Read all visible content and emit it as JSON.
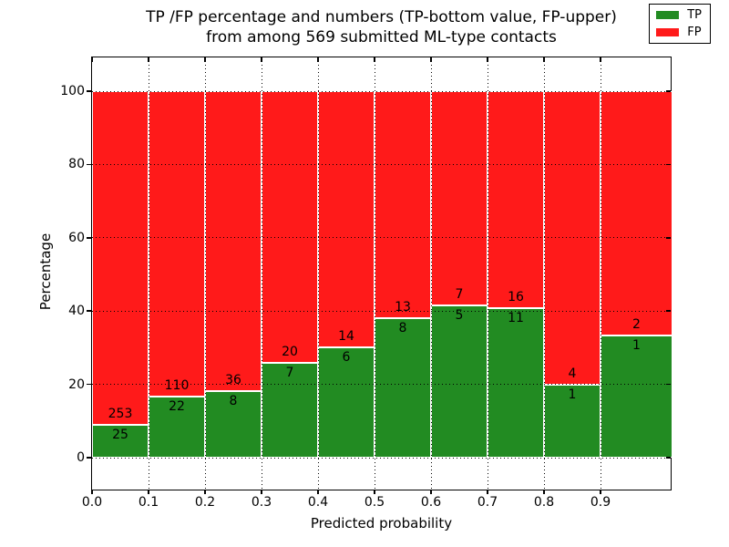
{
  "title": {
    "line1": "TP /FP percentage and numbers (TP-bottom value, FP-upper)",
    "line2": "from among 569 submitted ML-type contacts"
  },
  "chart_data": {
    "type": "bar",
    "subtype": "stacked_percentage",
    "title": "TP /FP percentage and numbers (TP-bottom value, FP-upper) from among 569 submitted ML-type contacts",
    "xlabel": "Predicted probability",
    "ylabel": "Percentage",
    "total_contacts": 569,
    "categories": [
      "0.0",
      "0.1",
      "0.2",
      "0.3",
      "0.4",
      "0.5",
      "0.6",
      "0.7",
      "0.8",
      "0.9"
    ],
    "series": [
      {
        "name": "TP",
        "color": "#228b22",
        "counts": [
          25,
          22,
          8,
          7,
          6,
          8,
          5,
          11,
          1,
          1
        ]
      },
      {
        "name": "FP",
        "color": "#ff1a1a",
        "counts": [
          253,
          110,
          36,
          20,
          14,
          13,
          7,
          16,
          4,
          2
        ]
      }
    ],
    "bar_edge_color": "#ffffff",
    "yticks": [
      0,
      20,
      40,
      60,
      80,
      100
    ],
    "xtick_labels": [
      "0.0",
      "0.1",
      "0.2",
      "0.3",
      "0.4",
      "0.5",
      "0.6",
      "0.7",
      "0.8",
      "0.9"
    ],
    "ylim": [
      -9.2,
      109.2
    ],
    "grid": "dotted black, on",
    "legend": {
      "position": "upper right",
      "entries": [
        "TP",
        "FP"
      ]
    }
  }
}
